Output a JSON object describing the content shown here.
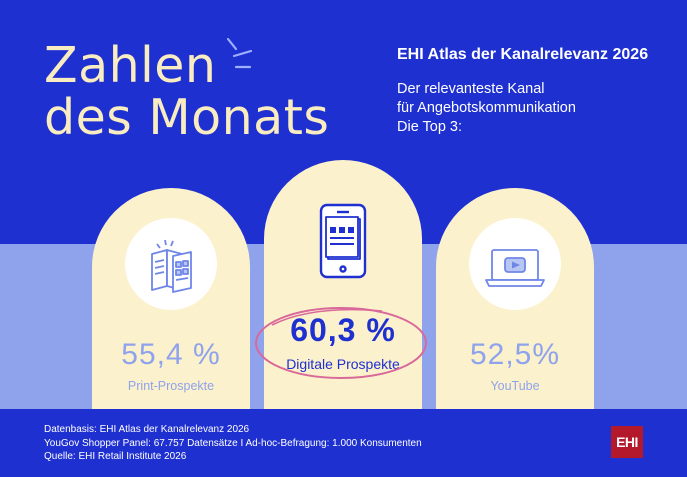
{
  "headline": {
    "line1": "Zahlen",
    "line2": "des Monats"
  },
  "intro": {
    "title": "EHI Atlas der Kanalrelevanz 2026",
    "subtitle_lines": [
      "Der relevanteste Kanal",
      "für Angebotskommunikation",
      "Die Top 3:"
    ]
  },
  "channels": [
    {
      "value": "55,4 %",
      "label": "Print-Prospekte",
      "icon": "brochure-icon"
    },
    {
      "value": "60,3 %",
      "label": "Digitale Prospekte",
      "icon": "smartphone-icon"
    },
    {
      "value": "52,5%",
      "label": "YouTube",
      "icon": "laptop-video-icon"
    }
  ],
  "footer": {
    "lines": [
      "Datenbasis: EHI Atlas der Kanalrelevanz 2026",
      "YouGov Shopper Panel: 67.757 Datensätze I Ad-hoc-Befragung: 1.000 Konsumenten",
      "Quelle: EHI Retail Institute 2026"
    ]
  },
  "logo": {
    "text": "EHI"
  },
  "colors": {
    "background": "#1f30d1",
    "band": "#8fa3ec",
    "arch": "#fbf1cc",
    "headline": "#f8ecc0",
    "highlight_ellipse": "#d9699a",
    "logo": "#b3182b"
  }
}
